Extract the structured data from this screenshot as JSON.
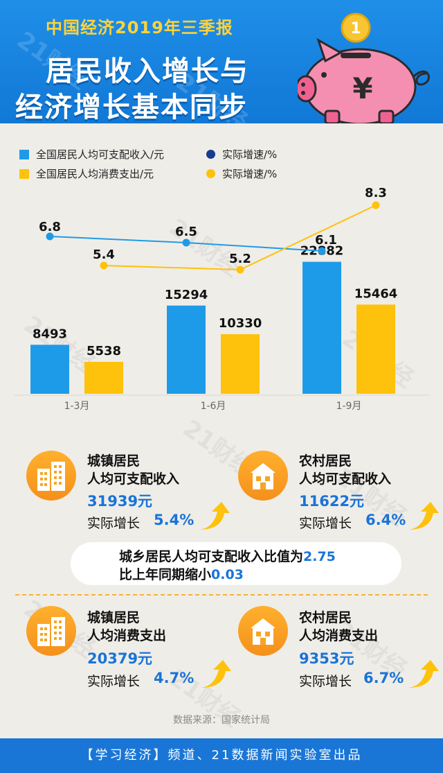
{
  "header": {
    "supertitle": "中国经济2019年三季报",
    "title_line1": "居民收入增长与",
    "title_line2": "经济增长基本同步",
    "coin_label": "1",
    "pig_symbol": "¥"
  },
  "legend": {
    "income_bar": "全国居民人均可支配收入/元",
    "income_rate": "实际增速/%",
    "consume_bar": "全国居民人均消费支出/元",
    "consume_rate": "实际增速/%"
  },
  "colors": {
    "income": "#1e9be8",
    "consume": "#fec20c",
    "income_legend_dot": "#173b8f",
    "header_blue": "#1178d6",
    "accent_blue": "#1a73d6",
    "orange": "#f5901b"
  },
  "chart_data": {
    "type": "bar",
    "categories": [
      "1-3月",
      "1-6月",
      "1-9月"
    ],
    "series": [
      {
        "name": "全国居民人均可支配收入/元",
        "values": [
          8493,
          15294,
          22882
        ]
      },
      {
        "name": "全国居民人均消费支出/元",
        "values": [
          5538,
          10330,
          15464
        ]
      }
    ],
    "line_series": [
      {
        "name": "实际增速/%",
        "values": [
          6.8,
          6.5,
          6.1
        ]
      },
      {
        "name": "实际增速/%",
        "values": [
          5.4,
          5.2,
          8.3
        ]
      }
    ],
    "value_labels": {
      "income": [
        "8493",
        "15294",
        "22882"
      ],
      "consume": [
        "5538",
        "10330",
        "15464"
      ],
      "income_rate": [
        "6.8",
        "6.5",
        "6.1"
      ],
      "consume_rate": [
        "5.4",
        "5.2",
        "8.3"
      ]
    },
    "ylim": [
      0,
      25000
    ],
    "grid": false,
    "legend_position": "top-left"
  },
  "cards": {
    "urban_income": {
      "title1": "城镇居民",
      "title2": "人均可支配收入",
      "value": "31939元",
      "growth_label": "实际增长",
      "growth": "5.4%",
      "icon": "building-icon"
    },
    "rural_income": {
      "title1": "农村居民",
      "title2": "人均可支配收入",
      "value": "11622元",
      "growth_label": "实际增长",
      "growth": "6.4%",
      "icon": "house-icon"
    },
    "urban_consume": {
      "title1": "城镇居民",
      "title2": "人均消费支出",
      "value": "20379元",
      "growth_label": "实际增长",
      "growth": "4.7%",
      "icon": "building-icon"
    },
    "rural_consume": {
      "title1": "农村居民",
      "title2": "人均消费支出",
      "value": "9353元",
      "growth_label": "实际增长",
      "growth": "6.7%",
      "icon": "house-icon"
    }
  },
  "ratio": {
    "line1_text": "城乡居民人均可支配收入比值为",
    "line1_value": "2.75",
    "line2_text": "比上年同期缩小",
    "line2_value": "0.03"
  },
  "source": "数据来源：国家统计局",
  "footer": "【学习经济】频道、21数据新闻实验室出品",
  "watermark": "21财经"
}
